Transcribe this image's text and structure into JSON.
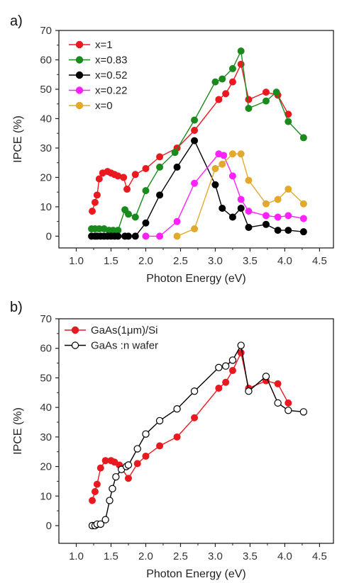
{
  "chart_data": [
    {
      "type": "line",
      "panel_label": "a)",
      "xlabel": "Photon Energy (eV)",
      "ylabel": "IPCE (%)",
      "xlim": [
        0.75,
        4.7
      ],
      "ylim": [
        -4,
        70
      ],
      "xticks": [
        "1.0",
        "1.5",
        "2.0",
        "2.5",
        "3.0",
        "3.5",
        "4.0",
        "4.5"
      ],
      "yticks": [
        "0",
        "10",
        "20",
        "30",
        "40",
        "50",
        "60",
        "70"
      ],
      "grid": false,
      "legend_position": "top-left",
      "series": [
        {
          "name": "x=1",
          "color": "#e8191f",
          "marker": "filled-circle",
          "x": [
            1.23,
            1.27,
            1.3,
            1.33,
            1.38,
            1.45,
            1.5,
            1.55,
            1.6,
            1.68,
            1.73,
            1.85,
            2.0,
            2.2,
            2.45,
            2.7,
            3.05,
            3.15,
            3.25,
            3.37,
            3.48,
            3.73,
            3.9,
            4.05
          ],
          "y": [
            8.5,
            11.5,
            14,
            19.5,
            21.5,
            22,
            21.5,
            21,
            20.5,
            20,
            16,
            21,
            23,
            27,
            30,
            36,
            46.5,
            48.5,
            52.5,
            58.5,
            46.5,
            49,
            48,
            41.5
          ]
        },
        {
          "name": "x=0.83",
          "color": "#198a1c",
          "marker": "filled-circle",
          "x": [
            1.22,
            1.27,
            1.33,
            1.4,
            1.47,
            1.53,
            1.6,
            1.7,
            1.75,
            1.85,
            2.0,
            2.2,
            2.42,
            2.7,
            3.0,
            3.1,
            3.25,
            3.37,
            3.48,
            3.73,
            3.88,
            4.05,
            4.27
          ],
          "y": [
            2.5,
            2.5,
            2.5,
            2.5,
            2,
            2,
            2,
            9,
            7.5,
            6.5,
            15.5,
            23.5,
            28.5,
            39.5,
            52.5,
            53.5,
            57,
            63,
            43.5,
            46,
            49,
            39,
            33.5
          ]
        },
        {
          "name": "x=0.52",
          "color": "#000000",
          "marker": "filled-circle",
          "x": [
            1.22,
            1.27,
            1.3,
            1.35,
            1.4,
            1.45,
            1.5,
            1.55,
            1.6,
            1.7,
            1.75,
            1.85,
            2.0,
            2.2,
            2.45,
            2.7,
            3.0,
            3.1,
            3.25,
            3.37,
            3.48,
            3.73,
            3.9,
            4.05,
            4.27
          ],
          "y": [
            0,
            0,
            0,
            0,
            0,
            0,
            0,
            0,
            0,
            0,
            0,
            0,
            4.5,
            14,
            23.5,
            32.5,
            17.5,
            9.5,
            6.5,
            9.5,
            3,
            4,
            2,
            2,
            1.5
          ]
        },
        {
          "name": "x=0.22",
          "color": "#ff22ff",
          "marker": "filled-circle",
          "x": [
            2.0,
            2.2,
            2.45,
            2.7,
            3.05,
            3.12,
            3.25,
            3.37,
            3.48,
            3.73,
            3.9,
            4.05,
            4.27
          ],
          "y": [
            0,
            0,
            5,
            18,
            28,
            27.5,
            20.5,
            12.5,
            8.5,
            7,
            6.5,
            7,
            6
          ]
        },
        {
          "name": "x=0",
          "color": "#e3a92d",
          "marker": "filled-circle",
          "x": [
            2.45,
            2.7,
            3.0,
            3.1,
            3.25,
            3.37,
            3.48,
            3.73,
            3.9,
            4.05,
            4.27
          ],
          "y": [
            0,
            2.5,
            23,
            24.5,
            28,
            28,
            19,
            11,
            12.5,
            16,
            11
          ]
        }
      ]
    },
    {
      "type": "line",
      "panel_label": "b)",
      "xlabel": "Photon Energy (eV)",
      "ylabel": "IPCE (%)",
      "xlim": [
        0.75,
        4.7
      ],
      "ylim": [
        -6,
        70
      ],
      "xticks": [
        "1.0",
        "1.5",
        "2.0",
        "2.5",
        "3.0",
        "3.5",
        "4.0",
        "4.5"
      ],
      "yticks": [
        "0",
        "10",
        "20",
        "30",
        "40",
        "50",
        "60",
        "70"
      ],
      "grid": false,
      "legend_position": "top-left",
      "series": [
        {
          "name": "GaAs(1μm)/Si",
          "color": "#e8191f",
          "marker": "filled-circle",
          "x": [
            1.23,
            1.27,
            1.3,
            1.35,
            1.42,
            1.5,
            1.55,
            1.62,
            1.75,
            1.88,
            2.0,
            2.2,
            2.45,
            2.7,
            3.05,
            3.15,
            3.25,
            3.37,
            3.48,
            3.73,
            3.9,
            4.05
          ],
          "y": [
            8.5,
            11.5,
            14,
            19.5,
            22,
            22,
            21.5,
            20.5,
            16,
            21,
            23.5,
            27,
            30,
            36.5,
            46.5,
            48.5,
            52.5,
            58.5,
            46.5,
            49,
            48,
            41.5
          ]
        },
        {
          "name": "GaAs :n wafer",
          "color": "#000000",
          "marker": "open-circle",
          "x": [
            1.23,
            1.27,
            1.3,
            1.35,
            1.42,
            1.48,
            1.52,
            1.57,
            1.65,
            1.72,
            1.75,
            1.88,
            2.0,
            2.2,
            2.45,
            2.7,
            3.05,
            3.15,
            3.25,
            3.37,
            3.48,
            3.73,
            3.9,
            4.05,
            4.27
          ],
          "y": [
            0,
            0,
            0.5,
            0.5,
            2,
            8.5,
            12.5,
            16.5,
            19,
            20,
            20.5,
            26,
            31,
            35.5,
            39.5,
            45.5,
            53.5,
            54,
            56,
            61,
            45.5,
            50.5,
            41.5,
            39,
            38.5
          ]
        }
      ]
    }
  ]
}
